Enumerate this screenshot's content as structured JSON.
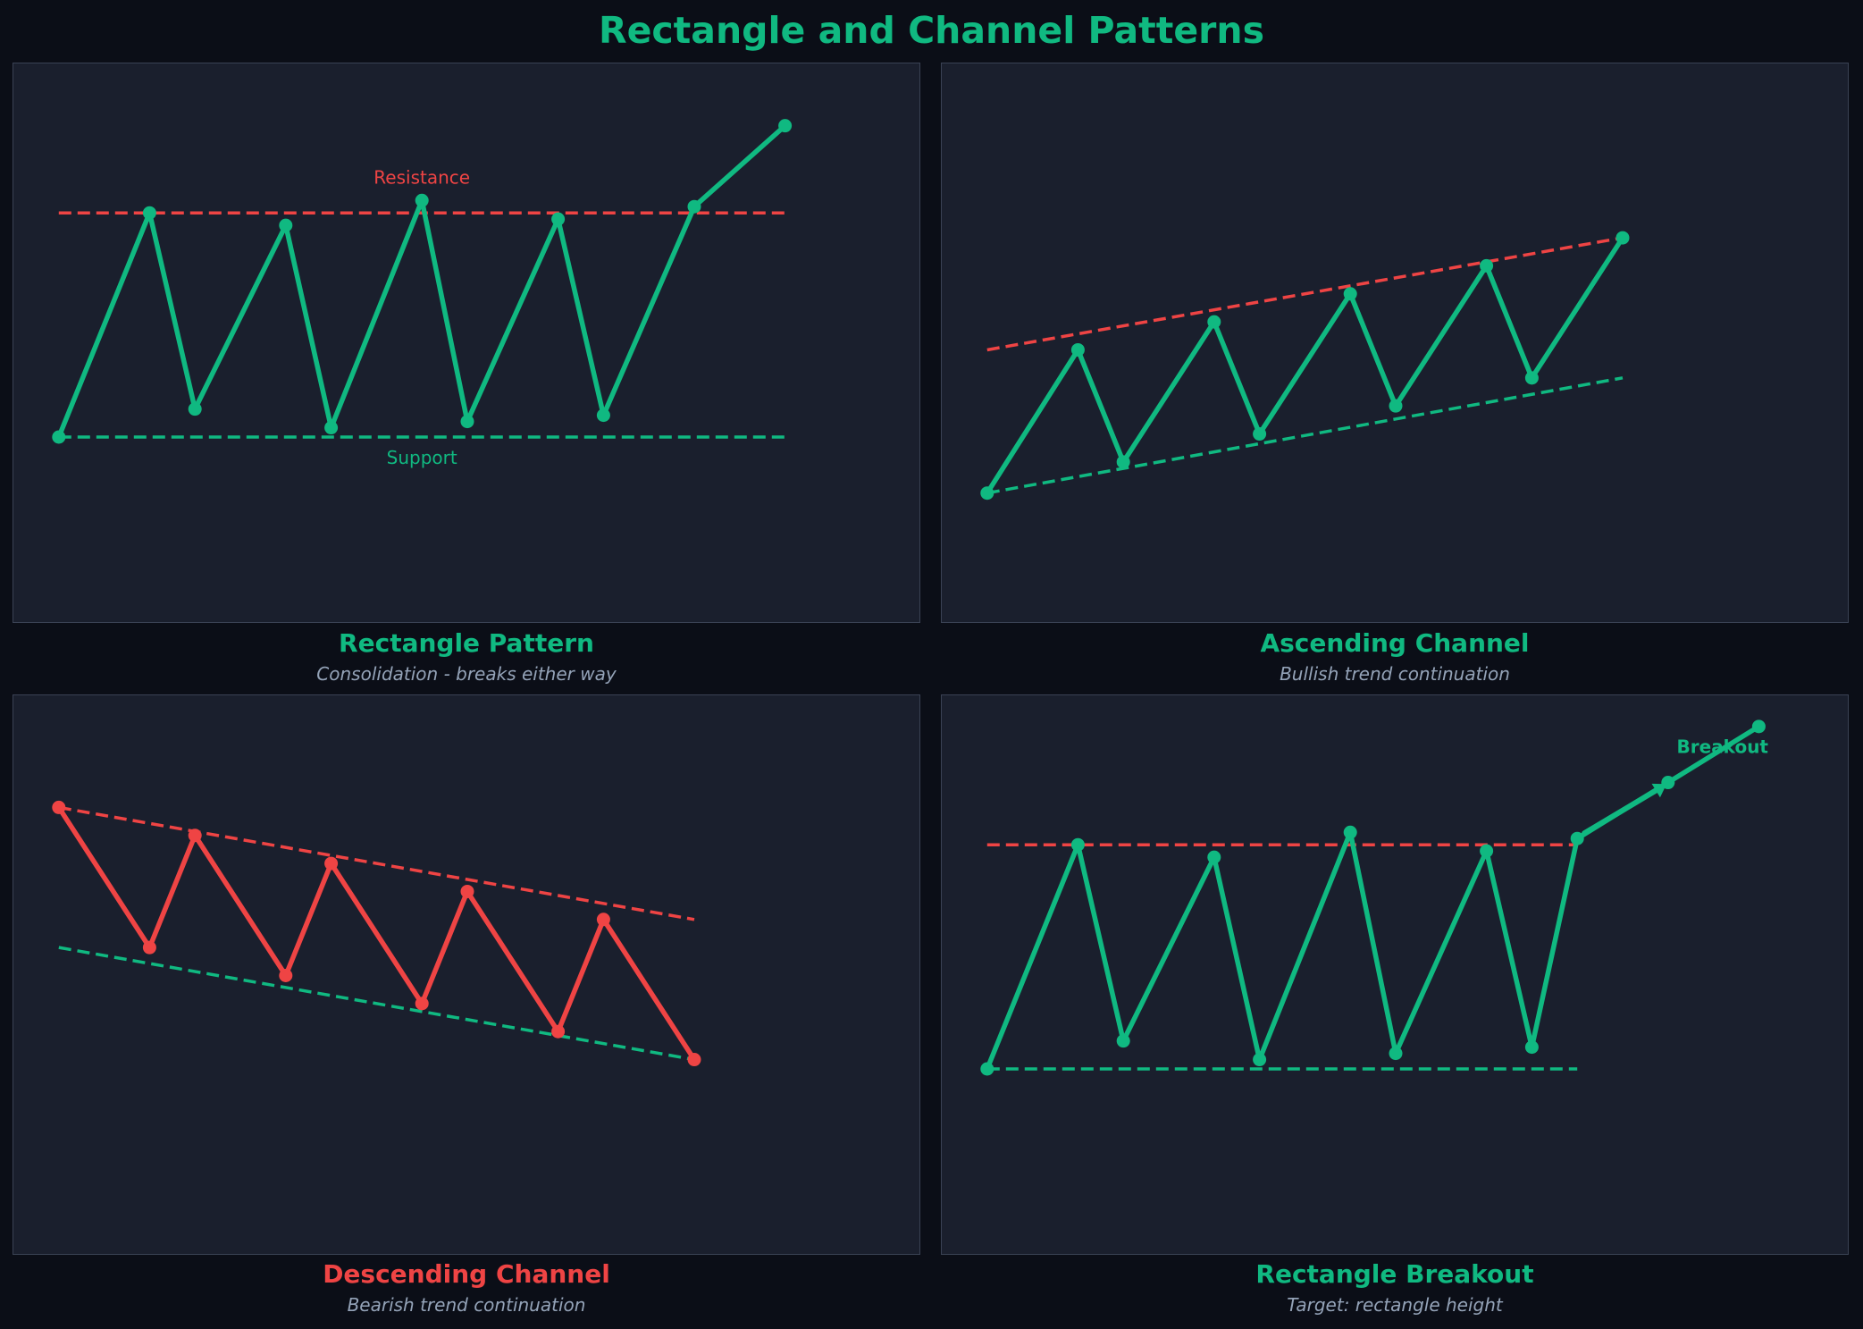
{
  "title": "Rectangle and Channel Patterns",
  "colors": {
    "background": "#0b0e17",
    "panel": "#1a1f2d",
    "panel_border": "#3a4254",
    "bullish": "#10b981",
    "bearish": "#ef4444",
    "subtitle": "#94a3b8"
  },
  "chart_data": [
    {
      "type": "line",
      "title": "Rectangle Pattern",
      "subtitle": "Consolidation - breaks either way",
      "title_color": "#10b981",
      "price_color": "#10b981",
      "xlim": [
        -0.5,
        9.5
      ],
      "ylim": [
        60,
        150
      ],
      "x": [
        0,
        1,
        1.5,
        2.5,
        3,
        4,
        4.5,
        5.5,
        6,
        7,
        8
      ],
      "values": [
        90,
        126,
        94.5,
        124,
        91.5,
        128,
        92.5,
        125,
        93.5,
        127,
        140
      ],
      "lines": [
        {
          "role": "resistance",
          "color": "#ef4444",
          "x": [
            0,
            8
          ],
          "y": [
            126,
            126
          ],
          "label": "Resistance",
          "label_x": 4,
          "label_y": 131.5
        },
        {
          "role": "support",
          "color": "#10b981",
          "x": [
            0,
            8
          ],
          "y": [
            90,
            90
          ],
          "label": "Support",
          "label_x": 4,
          "label_y": 86.5
        }
      ],
      "annotations": []
    },
    {
      "type": "line",
      "title": "Ascending Channel",
      "subtitle": "Bullish trend continuation",
      "title_color": "#10b981",
      "price_color": "#10b981",
      "xlim": [
        -0.5,
        9.5
      ],
      "ylim": [
        60,
        150
      ],
      "x": [
        0,
        1,
        1.5,
        2.5,
        3,
        4,
        4.5,
        5.5,
        6,
        7
      ],
      "values": [
        81,
        104,
        86,
        108.5,
        90.5,
        113,
        95,
        117.5,
        99.5,
        122
      ],
      "lines": [
        {
          "role": "resistance",
          "color": "#ef4444",
          "x": [
            0,
            7
          ],
          "y": [
            104,
            122
          ]
        },
        {
          "role": "support",
          "color": "#10b981",
          "x": [
            0,
            7
          ],
          "y": [
            81,
            99.5
          ]
        }
      ],
      "annotations": []
    },
    {
      "type": "line",
      "title": "Descending Channel",
      "subtitle": "Bearish trend continuation",
      "title_color": "#ef4444",
      "price_color": "#ef4444",
      "xlim": [
        -0.5,
        9.5
      ],
      "ylim": [
        60,
        150
      ],
      "x": [
        0,
        1,
        1.5,
        2.5,
        3,
        4,
        4.5,
        5.5,
        6,
        7
      ],
      "values": [
        132,
        109.5,
        127.5,
        105,
        123,
        100.5,
        118.5,
        96,
        114,
        91.5
      ],
      "lines": [
        {
          "role": "resistance",
          "color": "#ef4444",
          "x": [
            0,
            7
          ],
          "y": [
            132,
            114
          ]
        },
        {
          "role": "support",
          "color": "#10b981",
          "x": [
            0,
            7
          ],
          "y": [
            109.5,
            91.5
          ]
        }
      ],
      "annotations": []
    },
    {
      "type": "line",
      "title": "Rectangle Breakout",
      "subtitle": "Target: rectangle height",
      "title_color": "#10b981",
      "price_color": "#10b981",
      "xlim": [
        -0.5,
        9.5
      ],
      "ylim": [
        60,
        150
      ],
      "x": [
        0,
        1,
        1.5,
        2.5,
        3,
        4,
        4.5,
        5.5,
        6,
        6.5,
        7.5,
        8.5
      ],
      "values": [
        90,
        126,
        94.5,
        124,
        91.5,
        128,
        92.5,
        125,
        93.5,
        127,
        136,
        145
      ],
      "lines": [
        {
          "role": "resistance",
          "color": "#ef4444",
          "x": [
            0,
            6.5
          ],
          "y": [
            126,
            126
          ]
        },
        {
          "role": "support",
          "color": "#10b981",
          "x": [
            0,
            6.5
          ],
          "y": [
            90,
            90
          ]
        }
      ],
      "annotations": [
        {
          "text": "Breakout",
          "x": 8.1,
          "y": 141.5,
          "arrow_from_x": 6.5,
          "arrow_from_y": 127,
          "arrow_to_x": 7.4,
          "arrow_to_y": 135
        }
      ]
    }
  ]
}
